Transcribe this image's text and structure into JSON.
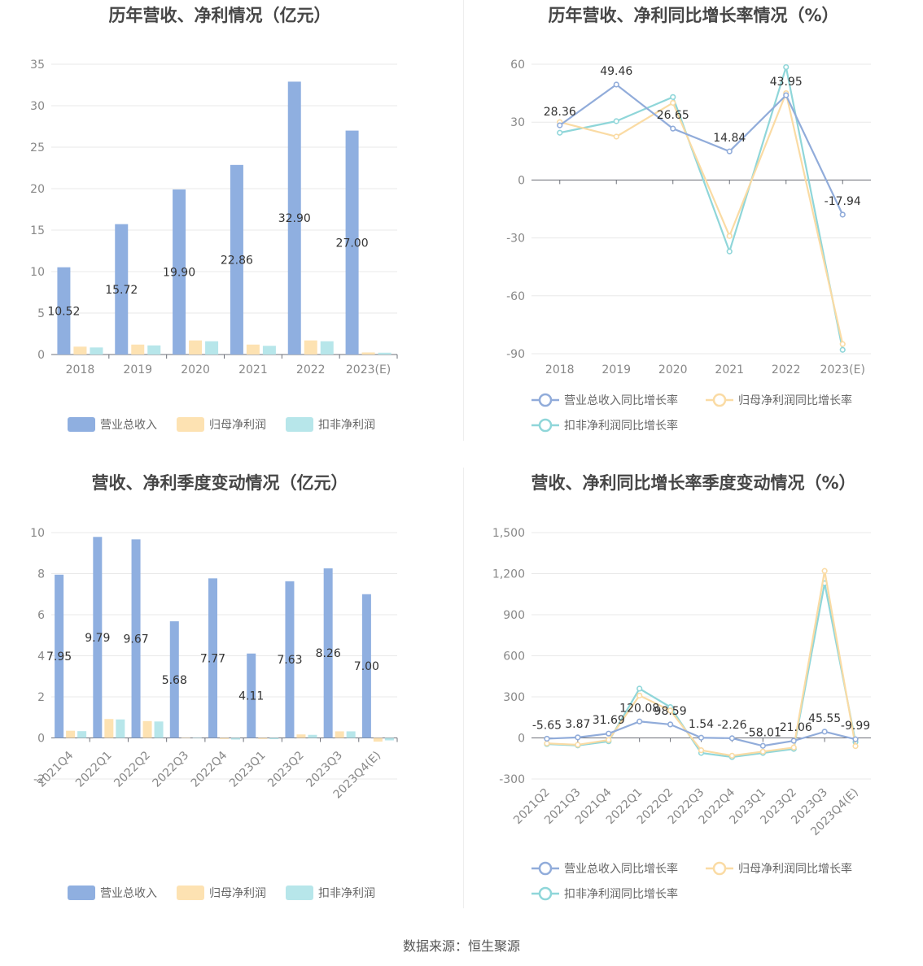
{
  "colors": {
    "revenue": "#8fafe0",
    "netProfit": "#fde2b2",
    "deductedProfit": "#b7e6ea",
    "revenueLine": "#91acda",
    "netProfitLine": "#fadba4",
    "deductedLine": "#8fd6d9",
    "grid": "#e8e8e8",
    "axis": "#6e7079"
  },
  "source": "数据来源：恒生聚源",
  "chart_data": [
    {
      "type": "bar",
      "title": "历年营收、净利情况（亿元）",
      "categories": [
        "2018",
        "2019",
        "2020",
        "2021",
        "2022",
        "2023(E)"
      ],
      "ylim": [
        0,
        35
      ],
      "yticks": [
        0,
        5,
        10,
        15,
        20,
        25,
        30,
        35
      ],
      "series": [
        {
          "name": "营业总收入",
          "values": [
            10.52,
            15.72,
            19.9,
            22.86,
            32.9,
            27.0
          ],
          "labels": [
            "10.52",
            "15.72",
            "19.90",
            "22.86",
            "32.90",
            "27.00"
          ]
        },
        {
          "name": "归母净利润",
          "values": [
            0.95,
            1.2,
            1.7,
            1.2,
            1.7,
            0.25
          ]
        },
        {
          "name": "扣非净利润",
          "values": [
            0.85,
            1.1,
            1.6,
            1.05,
            1.6,
            0.22
          ]
        }
      ],
      "grid": true,
      "legend": "bottom"
    },
    {
      "type": "line",
      "title": "历年营收、净利同比增长率情况（%）",
      "categories": [
        "2018",
        "2019",
        "2020",
        "2021",
        "2022",
        "2023(E)"
      ],
      "ylim": [
        -90,
        60
      ],
      "yticks": [
        -90,
        -60,
        -30,
        0,
        30,
        60
      ],
      "series": [
        {
          "name": "营业总收入同比增长率",
          "values": [
            28.36,
            49.46,
            26.65,
            14.84,
            43.95,
            -17.94
          ],
          "labels": [
            "28.36",
            "49.46",
            "26.65",
            "14.84",
            "43.95",
            "-17.94"
          ]
        },
        {
          "name": "归母净利润同比增长率",
          "values": [
            30,
            22.5,
            40,
            -29,
            45,
            -85
          ]
        },
        {
          "name": "扣非净利润同比增长率",
          "values": [
            24.5,
            30.5,
            43,
            -37,
            58.5,
            -88
          ]
        }
      ],
      "grid": true,
      "legend": "bottom"
    },
    {
      "type": "bar",
      "title": "营收、净利季度变动情况（亿元）",
      "categories": [
        "2021Q4",
        "2022Q1",
        "2022Q2",
        "2022Q3",
        "2022Q4",
        "2023Q1",
        "2023Q2",
        "2023Q3",
        "2023Q4(E)"
      ],
      "ylim": [
        -2,
        10
      ],
      "yticks": [
        -2,
        0,
        2,
        4,
        6,
        8,
        10
      ],
      "series": [
        {
          "name": "营业总收入",
          "values": [
            7.95,
            9.79,
            9.67,
            5.68,
            7.77,
            4.11,
            7.63,
            8.26,
            7.0
          ],
          "labels": [
            "7.95",
            "9.79",
            "9.67",
            "5.68",
            "7.77",
            "4.11",
            "7.63",
            "8.26",
            "7.00"
          ]
        },
        {
          "name": "归母净利润",
          "values": [
            0.35,
            0.92,
            0.82,
            0.02,
            -0.05,
            -0.05,
            0.17,
            0.32,
            -0.18
          ]
        },
        {
          "name": "扣非净利润",
          "values": [
            0.33,
            0.9,
            0.8,
            0.02,
            -0.08,
            -0.06,
            0.15,
            0.32,
            -0.12
          ]
        }
      ],
      "grid": true,
      "legend": "bottom"
    },
    {
      "type": "line",
      "title": "营收、净利同比增长率季度变动情况（%）",
      "categories": [
        "2021Q2",
        "2021Q3",
        "2021Q4",
        "2022Q1",
        "2022Q2",
        "2022Q3",
        "2022Q4",
        "2023Q1",
        "2023Q2",
        "2023Q3",
        "2023Q4(E)"
      ],
      "ylim": [
        -300,
        1500
      ],
      "yticks": [
        -300,
        0,
        300,
        600,
        900,
        1200,
        1500
      ],
      "ytickLabels": [
        "-300",
        "0",
        "300",
        "600",
        "900",
        "1,200",
        "1,500"
      ],
      "series": [
        {
          "name": "营业总收入同比增长率",
          "values": [
            -5.65,
            3.87,
            31.69,
            120.08,
            98.59,
            1.54,
            -2.26,
            -58.01,
            -21.06,
            45.55,
            -9.99
          ],
          "labels": [
            "-5.65",
            "3.87",
            "31.69",
            "120.08",
            "98.59",
            "1.54",
            "-2.26",
            "-58.01",
            "-21.06",
            "45.55",
            "-9.99"
          ]
        },
        {
          "name": "归母净利润同比增长率",
          "values": [
            -40,
            -50,
            -15,
            310,
            200,
            -90,
            -130,
            -100,
            -70,
            1220,
            -60
          ]
        },
        {
          "name": "扣非净利润同比增长率",
          "values": [
            -45,
            -55,
            -25,
            360,
            225,
            -110,
            -140,
            -110,
            -80,
            1130,
            -30
          ]
        }
      ],
      "grid": true,
      "legend": "bottom"
    }
  ]
}
